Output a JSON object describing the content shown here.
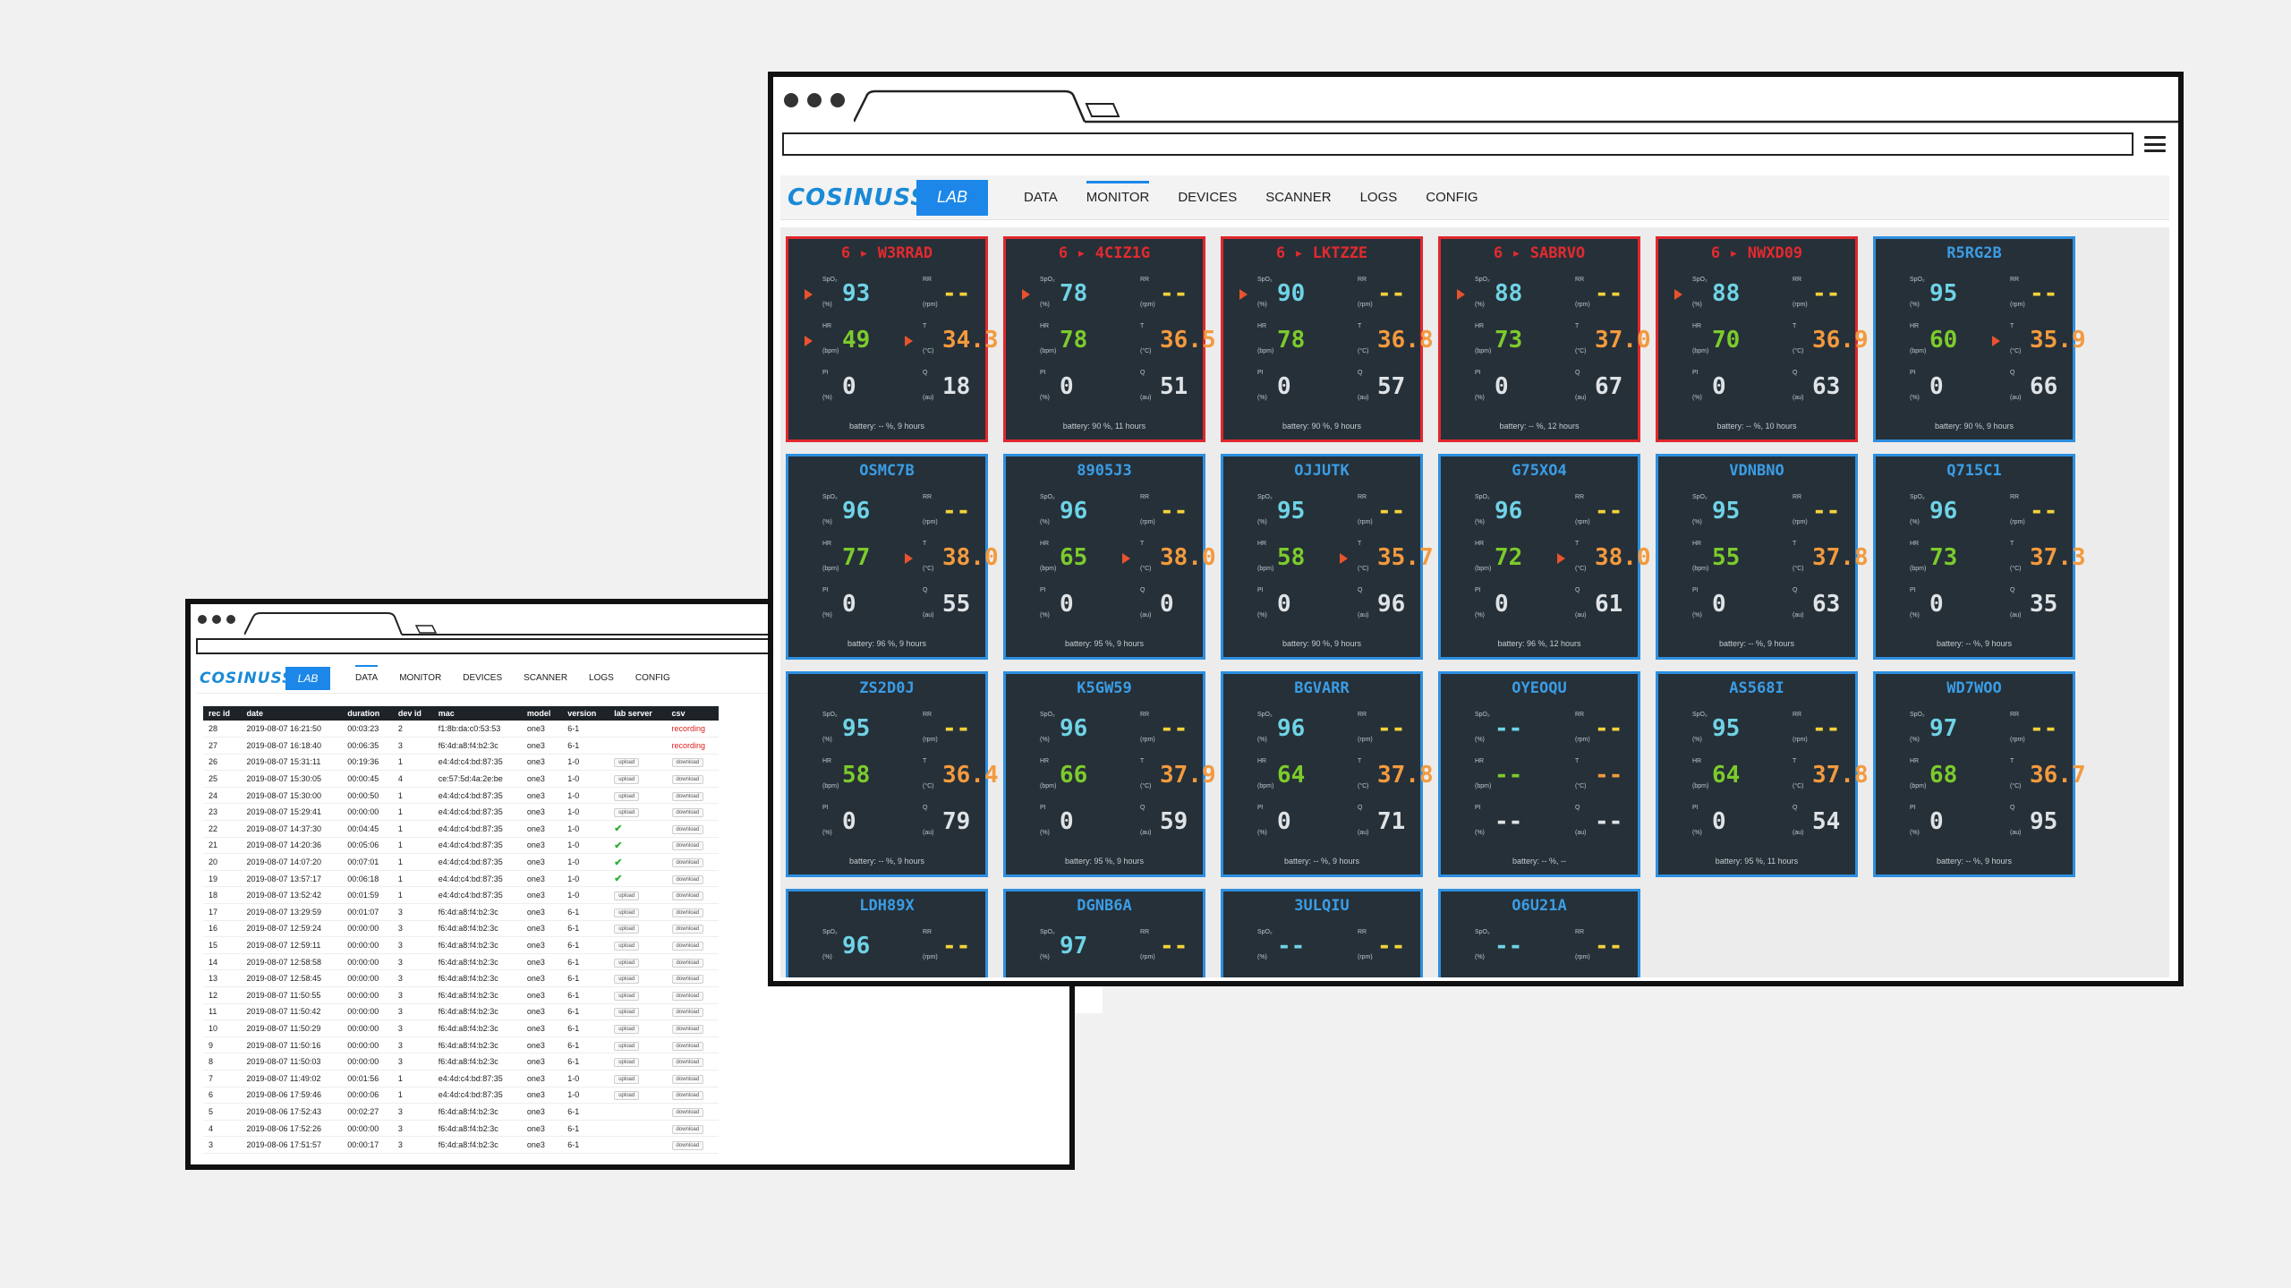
{
  "main_window": {
    "logo": "COSINUSS",
    "logo_mark": "°",
    "badge": "LAB",
    "nav": [
      {
        "label": "DATA",
        "active": false
      },
      {
        "label": "MONITOR",
        "active": true
      },
      {
        "label": "DEVICES",
        "active": false
      },
      {
        "label": "SCANNER",
        "active": false
      },
      {
        "label": "LOGS",
        "active": false
      },
      {
        "label": "CONFIG",
        "active": false
      }
    ],
    "labels": {
      "spo2": "SpO₂",
      "spo2_unit": "(%)",
      "rr": "RR",
      "rr_unit": "(rpm)",
      "hr": "HR",
      "hr_unit": "(bpm)",
      "temp": "T",
      "temp_unit": "(°C)",
      "pi": "PI",
      "pi_unit": "(%)",
      "ac": "Q",
      "ac_unit": "(au)"
    },
    "colors": {
      "alarm": "#e0272d",
      "normal": "#2d8fe0",
      "card_bg": "#263038"
    },
    "cards": [
      {
        "title": "6 ▸ W3RRAD",
        "alarm": true,
        "spo2": "93",
        "rr": "--",
        "hr": "49",
        "temp": "34.3",
        "pi": "0",
        "ac": "18",
        "battery": "battery: -- %, 9 hours",
        "arrows": [
          "spo2",
          "hr",
          "temp"
        ]
      },
      {
        "title": "6 ▸ 4CIZ1G",
        "alarm": true,
        "spo2": "78",
        "rr": "--",
        "hr": "78",
        "temp": "36.5",
        "pi": "0",
        "ac": "51",
        "battery": "battery: 90 %, 11 hours",
        "arrows": [
          "spo2"
        ]
      },
      {
        "title": "6 ▸ LKTZZE",
        "alarm": true,
        "spo2": "90",
        "rr": "--",
        "hr": "78",
        "temp": "36.8",
        "pi": "0",
        "ac": "57",
        "battery": "battery: 90 %, 9 hours",
        "arrows": [
          "spo2"
        ]
      },
      {
        "title": "6 ▸ SABRVO",
        "alarm": true,
        "spo2": "88",
        "rr": "--",
        "hr": "73",
        "temp": "37.0",
        "pi": "0",
        "ac": "67",
        "battery": "battery: -- %, 12 hours",
        "arrows": [
          "spo2"
        ]
      },
      {
        "title": "6 ▸ NWXD09",
        "alarm": true,
        "spo2": "88",
        "rr": "--",
        "hr": "70",
        "temp": "36.9",
        "pi": "0",
        "ac": "63",
        "battery": "battery: -- %, 10 hours",
        "arrows": [
          "spo2"
        ]
      },
      {
        "title": "R5RG2B",
        "alarm": false,
        "spo2": "95",
        "rr": "--",
        "hr": "60",
        "temp": "35.9",
        "pi": "0",
        "ac": "66",
        "battery": "battery: 90 %, 9 hours",
        "arrows": [
          "temp"
        ]
      },
      {
        "title": "OSMC7B",
        "alarm": false,
        "spo2": "96",
        "rr": "--",
        "hr": "77",
        "temp": "38.0",
        "pi": "0",
        "ac": "55",
        "battery": "battery: 96 %, 9 hours",
        "arrows": [
          "temp"
        ]
      },
      {
        "title": "8905J3",
        "alarm": false,
        "spo2": "96",
        "rr": "--",
        "hr": "65",
        "temp": "38.0",
        "pi": "0",
        "ac": "0",
        "battery": "battery: 95 %, 9 hours",
        "arrows": [
          "temp"
        ]
      },
      {
        "title": "OJJUTK",
        "alarm": false,
        "spo2": "95",
        "rr": "--",
        "hr": "58",
        "temp": "35.7",
        "pi": "0",
        "ac": "96",
        "battery": "battery: 90 %, 9 hours",
        "arrows": [
          "temp"
        ]
      },
      {
        "title": "G75XO4",
        "alarm": false,
        "spo2": "96",
        "rr": "--",
        "hr": "72",
        "temp": "38.0",
        "pi": "0",
        "ac": "61",
        "battery": "battery: 96 %, 12 hours",
        "arrows": [
          "temp"
        ]
      },
      {
        "title": "VDNBNO",
        "alarm": false,
        "spo2": "95",
        "rr": "--",
        "hr": "55",
        "temp": "37.8",
        "pi": "0",
        "ac": "63",
        "battery": "battery: -- %, 9 hours",
        "arrows": []
      },
      {
        "title": "Q715C1",
        "alarm": false,
        "spo2": "96",
        "rr": "--",
        "hr": "73",
        "temp": "37.3",
        "pi": "0",
        "ac": "35",
        "battery": "battery: -- %, 9 hours",
        "arrows": []
      },
      {
        "title": "ZS2D0J",
        "alarm": false,
        "spo2": "95",
        "rr": "--",
        "hr": "58",
        "temp": "36.4",
        "pi": "0",
        "ac": "79",
        "battery": "battery: -- %, 9 hours",
        "arrows": []
      },
      {
        "title": "K5GW59",
        "alarm": false,
        "spo2": "96",
        "rr": "--",
        "hr": "66",
        "temp": "37.9",
        "pi": "0",
        "ac": "59",
        "battery": "battery: 95 %, 9 hours",
        "arrows": []
      },
      {
        "title": "BGVARR",
        "alarm": false,
        "spo2": "96",
        "rr": "--",
        "hr": "64",
        "temp": "37.8",
        "pi": "0",
        "ac": "71",
        "battery": "battery: -- %, 9 hours",
        "arrows": []
      },
      {
        "title": "OYEOQU",
        "alarm": false,
        "spo2": "--",
        "rr": "--",
        "hr": "--",
        "temp": "--",
        "pi": "--",
        "ac": "--",
        "battery": "battery: -- %, --",
        "arrows": []
      },
      {
        "title": "AS568I",
        "alarm": false,
        "spo2": "95",
        "rr": "--",
        "hr": "64",
        "temp": "37.8",
        "pi": "0",
        "ac": "54",
        "battery": "battery: 95 %, 11 hours",
        "arrows": []
      },
      {
        "title": "WD7WOO",
        "alarm": false,
        "spo2": "97",
        "rr": "--",
        "hr": "68",
        "temp": "36.7",
        "pi": "0",
        "ac": "95",
        "battery": "battery: -- %, 9 hours",
        "arrows": []
      },
      {
        "title": "LDH89X",
        "alarm": false,
        "spo2": "96",
        "rr": "--",
        "hr": "",
        "temp": "",
        "pi": "",
        "ac": "",
        "battery": "",
        "arrows": []
      },
      {
        "title": "DGNB6A",
        "alarm": false,
        "spo2": "97",
        "rr": "--",
        "hr": "",
        "temp": "",
        "pi": "",
        "ac": "",
        "battery": "",
        "arrows": []
      },
      {
        "title": "3ULQIU",
        "alarm": false,
        "spo2": "--",
        "rr": "--",
        "hr": "",
        "temp": "",
        "pi": "",
        "ac": "",
        "battery": "",
        "arrows": []
      },
      {
        "title": "O6U21A",
        "alarm": false,
        "spo2": "--",
        "rr": "--",
        "hr": "",
        "temp": "",
        "pi": "",
        "ac": "",
        "battery": "",
        "arrows": []
      }
    ]
  },
  "small_window": {
    "logo": "COSINUSS",
    "logo_mark": "°",
    "badge": "LAB",
    "nav": [
      {
        "label": "DATA",
        "active": true
      },
      {
        "label": "MONITOR",
        "active": false
      },
      {
        "label": "DEVICES",
        "active": false
      },
      {
        "label": "SCANNER",
        "active": false
      },
      {
        "label": "LOGS",
        "active": false
      },
      {
        "label": "CONFIG",
        "active": false
      }
    ],
    "columns": [
      "rec id",
      "date",
      "duration",
      "dev id",
      "mac",
      "model",
      "version",
      "lab server",
      "csv"
    ],
    "upload_label": "upload",
    "download_label": "download",
    "recording_label": "recording",
    "rows": [
      {
        "id": "28",
        "date": "2019-08-07 16:21:50",
        "dur": "00:03:23",
        "dev": "2",
        "mac": "f1:8b:da:c0:53:53",
        "model": "one3",
        "ver": "6-1",
        "lab": "flag",
        "csv": "recording"
      },
      {
        "id": "27",
        "date": "2019-08-07 16:18:40",
        "dur": "00:06:35",
        "dev": "3",
        "mac": "f6:4d:a8:f4:b2:3c",
        "model": "one3",
        "ver": "6-1",
        "lab": "flag",
        "csv": "recording"
      },
      {
        "id": "26",
        "date": "2019-08-07 15:31:11",
        "dur": "00:19:36",
        "dev": "1",
        "mac": "e4:4d:c4:bd:87:35",
        "model": "one3",
        "ver": "1-0",
        "lab": "upload",
        "csv": "download"
      },
      {
        "id": "25",
        "date": "2019-08-07 15:30:05",
        "dur": "00:00:45",
        "dev": "4",
        "mac": "ce:57:5d:4a:2e:be",
        "model": "one3",
        "ver": "1-0",
        "lab": "upload",
        "csv": "download"
      },
      {
        "id": "24",
        "date": "2019-08-07 15:30:00",
        "dur": "00:00:50",
        "dev": "1",
        "mac": "e4:4d:c4:bd:87:35",
        "model": "one3",
        "ver": "1-0",
        "lab": "upload",
        "csv": "download"
      },
      {
        "id": "23",
        "date": "2019-08-07 15:29:41",
        "dur": "00:00:00",
        "dev": "1",
        "mac": "e4:4d:c4:bd:87:35",
        "model": "one3",
        "ver": "1-0",
        "lab": "upload",
        "csv": "download"
      },
      {
        "id": "22",
        "date": "2019-08-07 14:37:30",
        "dur": "00:04:45",
        "dev": "1",
        "mac": "e4:4d:c4:bd:87:35",
        "model": "one3",
        "ver": "1-0",
        "lab": "check",
        "csv": "download"
      },
      {
        "id": "21",
        "date": "2019-08-07 14:20:36",
        "dur": "00:05:06",
        "dev": "1",
        "mac": "e4:4d:c4:bd:87:35",
        "model": "one3",
        "ver": "1-0",
        "lab": "check",
        "csv": "download"
      },
      {
        "id": "20",
        "date": "2019-08-07 14:07:20",
        "dur": "00:07:01",
        "dev": "1",
        "mac": "e4:4d:c4:bd:87:35",
        "model": "one3",
        "ver": "1-0",
        "lab": "check",
        "csv": "download"
      },
      {
        "id": "19",
        "date": "2019-08-07 13:57:17",
        "dur": "00:06:18",
        "dev": "1",
        "mac": "e4:4d:c4:bd:87:35",
        "model": "one3",
        "ver": "1-0",
        "lab": "check",
        "csv": "download"
      },
      {
        "id": "18",
        "date": "2019-08-07 13:52:42",
        "dur": "00:01:59",
        "dev": "1",
        "mac": "e4:4d:c4:bd:87:35",
        "model": "one3",
        "ver": "1-0",
        "lab": "upload",
        "csv": "download"
      },
      {
        "id": "17",
        "date": "2019-08-07 13:29:59",
        "dur": "00:01:07",
        "dev": "3",
        "mac": "f6:4d:a8:f4:b2:3c",
        "model": "one3",
        "ver": "6-1",
        "lab": "upload",
        "csv": "download"
      },
      {
        "id": "16",
        "date": "2019-08-07 12:59:24",
        "dur": "00:00:00",
        "dev": "3",
        "mac": "f6:4d:a8:f4:b2:3c",
        "model": "one3",
        "ver": "6-1",
        "lab": "upload",
        "csv": "download"
      },
      {
        "id": "15",
        "date": "2019-08-07 12:59:11",
        "dur": "00:00:00",
        "dev": "3",
        "mac": "f6:4d:a8:f4:b2:3c",
        "model": "one3",
        "ver": "6-1",
        "lab": "upload",
        "csv": "download"
      },
      {
        "id": "14",
        "date": "2019-08-07 12:58:58",
        "dur": "00:00:00",
        "dev": "3",
        "mac": "f6:4d:a8:f4:b2:3c",
        "model": "one3",
        "ver": "6-1",
        "lab": "upload",
        "csv": "download"
      },
      {
        "id": "13",
        "date": "2019-08-07 12:58:45",
        "dur": "00:00:00",
        "dev": "3",
        "mac": "f6:4d:a8:f4:b2:3c",
        "model": "one3",
        "ver": "6-1",
        "lab": "upload",
        "csv": "download"
      },
      {
        "id": "12",
        "date": "2019-08-07 11:50:55",
        "dur": "00:00:00",
        "dev": "3",
        "mac": "f6:4d:a8:f4:b2:3c",
        "model": "one3",
        "ver": "6-1",
        "lab": "upload",
        "csv": "download"
      },
      {
        "id": "11",
        "date": "2019-08-07 11:50:42",
        "dur": "00:00:00",
        "dev": "3",
        "mac": "f6:4d:a8:f4:b2:3c",
        "model": "one3",
        "ver": "6-1",
        "lab": "upload",
        "csv": "download"
      },
      {
        "id": "10",
        "date": "2019-08-07 11:50:29",
        "dur": "00:00:00",
        "dev": "3",
        "mac": "f6:4d:a8:f4:b2:3c",
        "model": "one3",
        "ver": "6-1",
        "lab": "upload",
        "csv": "download"
      },
      {
        "id": "9",
        "date": "2019-08-07 11:50:16",
        "dur": "00:00:00",
        "dev": "3",
        "mac": "f6:4d:a8:f4:b2:3c",
        "model": "one3",
        "ver": "6-1",
        "lab": "upload",
        "csv": "download"
      },
      {
        "id": "8",
        "date": "2019-08-07 11:50:03",
        "dur": "00:00:00",
        "dev": "3",
        "mac": "f6:4d:a8:f4:b2:3c",
        "model": "one3",
        "ver": "6-1",
        "lab": "upload",
        "csv": "download"
      },
      {
        "id": "7",
        "date": "2019-08-07 11:49:02",
        "dur": "00:01:56",
        "dev": "1",
        "mac": "e4:4d:c4:bd:87:35",
        "model": "one3",
        "ver": "1-0",
        "lab": "upload",
        "csv": "download"
      },
      {
        "id": "6",
        "date": "2019-08-06 17:59:46",
        "dur": "00:00:06",
        "dev": "1",
        "mac": "e4:4d:c4:bd:87:35",
        "model": "one3",
        "ver": "1-0",
        "lab": "upload",
        "csv": "download"
      },
      {
        "id": "5",
        "date": "2019-08-06 17:52:43",
        "dur": "00:02:27",
        "dev": "3",
        "mac": "f6:4d:a8:f4:b2:3c",
        "model": "one3",
        "ver": "6-1",
        "lab": "",
        "csv": "download"
      },
      {
        "id": "4",
        "date": "2019-08-06 17:52:26",
        "dur": "00:00:00",
        "dev": "3",
        "mac": "f6:4d:a8:f4:b2:3c",
        "model": "one3",
        "ver": "6-1",
        "lab": "",
        "csv": "download"
      },
      {
        "id": "3",
        "date": "2019-08-06 17:51:57",
        "dur": "00:00:17",
        "dev": "3",
        "mac": "f6:4d:a8:f4:b2:3c",
        "model": "one3",
        "ver": "6-1",
        "lab": "",
        "csv": "download"
      }
    ]
  }
}
